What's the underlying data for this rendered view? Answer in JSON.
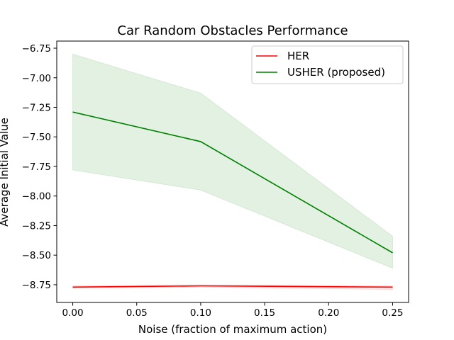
{
  "chart_data": {
    "type": "line",
    "title": "Car Random Obstacles Performance",
    "xlabel": "Noise (fraction of maximum action)",
    "ylabel": "Average Initial Value",
    "xlim": [
      -0.0125,
      0.2625
    ],
    "ylim": [
      -8.9,
      -6.69
    ],
    "xticks": [
      0.0,
      0.05,
      0.1,
      0.15,
      0.2,
      0.25
    ],
    "xtick_labels": [
      "0.00",
      "0.05",
      "0.10",
      "0.15",
      "0.20",
      "0.25"
    ],
    "yticks": [
      -6.75,
      -7.0,
      -7.25,
      -7.5,
      -7.75,
      -8.0,
      -8.25,
      -8.5,
      -8.75
    ],
    "ytick_labels": [
      "−6.75",
      "−7.00",
      "−7.25",
      "−7.50",
      "−7.75",
      "−8.00",
      "−8.25",
      "−8.50",
      "−8.75"
    ],
    "grid": false,
    "legend_position": "top-right",
    "x": [
      0.0,
      0.1,
      0.25
    ],
    "series": [
      {
        "name": "HER",
        "color": "#ff0000",
        "values": [
          -8.77,
          -8.76,
          -8.77
        ],
        "lower": [
          -8.78,
          -8.77,
          -8.79
        ],
        "upper": [
          -8.76,
          -8.75,
          -8.76
        ]
      },
      {
        "name": "USHER (proposed)",
        "color": "#008000",
        "values": [
          -7.29,
          -7.54,
          -8.48
        ],
        "lower": [
          -7.78,
          -7.95,
          -8.61
        ],
        "upper": [
          -6.8,
          -7.13,
          -8.34
        ]
      }
    ]
  }
}
